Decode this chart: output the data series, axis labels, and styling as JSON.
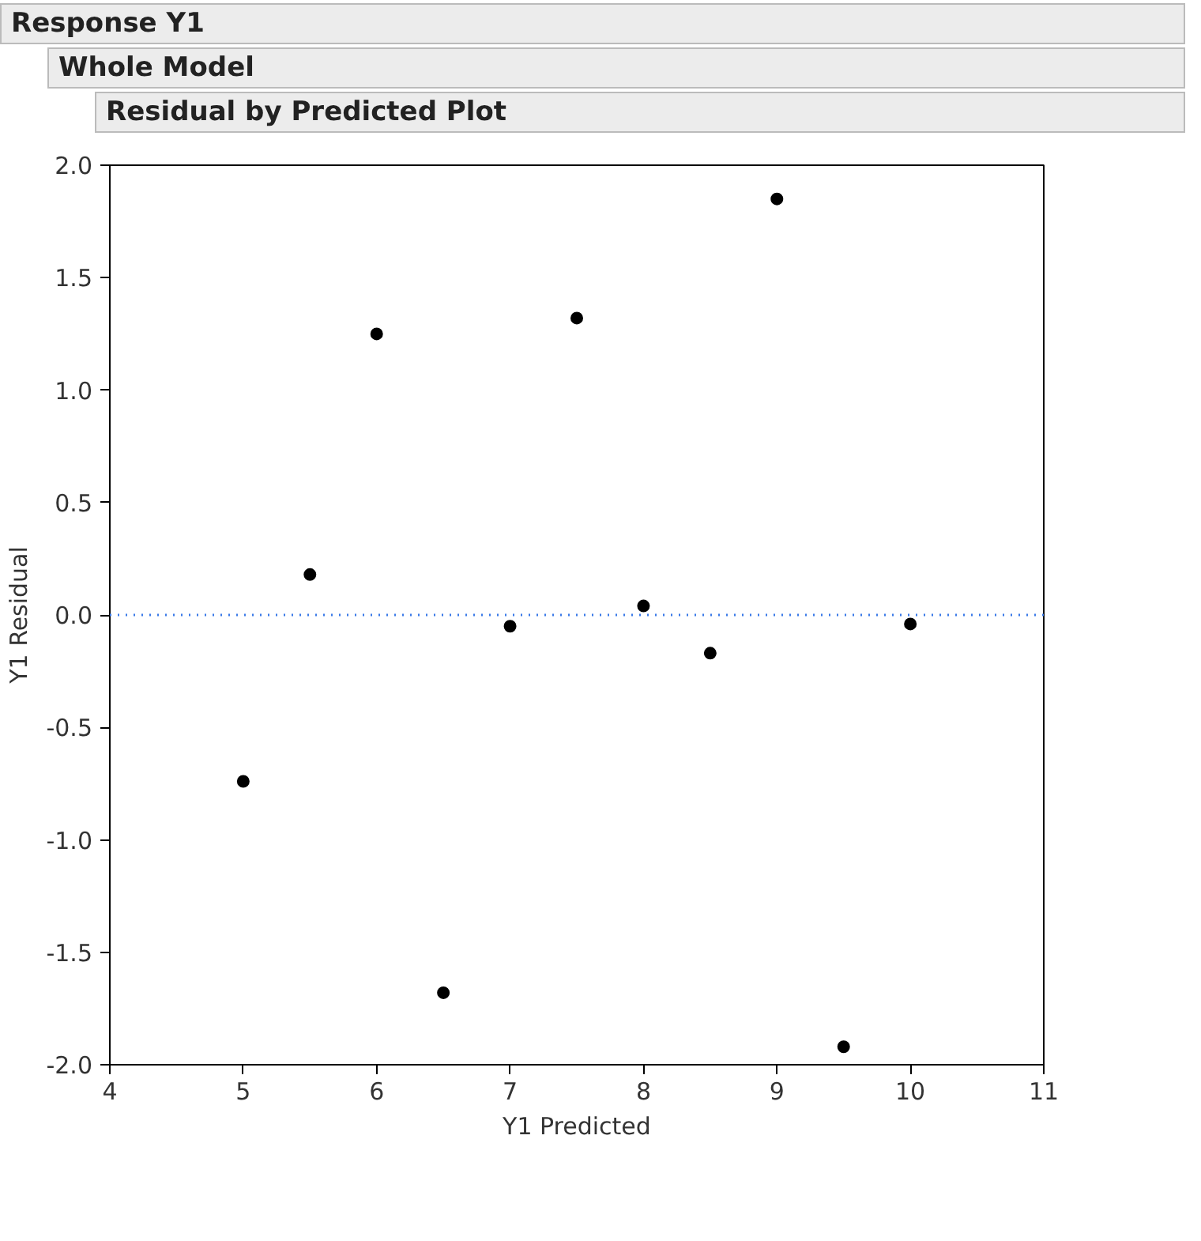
{
  "chart_data": {
    "type": "scatter",
    "title": "Response Y1",
    "subtitle": "Whole Model",
    "annotations": [
      "Residual by Predicted Plot"
    ],
    "xlabel": "Y1 Predicted",
    "ylabel": "Y1 Residual",
    "x": [
      5,
      5.5,
      6,
      6.5,
      7,
      7.5,
      8,
      8.5,
      9,
      9.5,
      10
    ],
    "series": [
      {
        "color": "#000000",
        "values": [
          -0.74,
          0.18,
          1.25,
          -1.68,
          -0.05,
          1.32,
          0.04,
          -0.17,
          1.85,
          -1.92,
          -0.04
        ]
      }
    ],
    "marker": "circle",
    "xlim": [
      4,
      11
    ],
    "xticks": [
      4,
      5,
      6,
      7,
      8,
      9,
      10,
      11
    ],
    "ylim": [
      -2,
      2
    ],
    "yticks": [
      {
        "value": -2,
        "label": "-2.0"
      },
      {
        "value": -1.5,
        "label": "-1.5"
      },
      {
        "value": -1,
        "label": "-1.0"
      },
      {
        "value": -0.5,
        "label": "-0.5"
      },
      {
        "value": 0,
        "label": "0.0"
      },
      {
        "value": 0.5,
        "label": "0.5"
      },
      {
        "value": 1,
        "label": "1.0"
      },
      {
        "value": 1.5,
        "label": "1.5"
      },
      {
        "value": 2,
        "label": "2.0"
      }
    ],
    "ref_lines": [
      {
        "axis": "y",
        "value": 0,
        "color": "#3b7be8",
        "line_style": "dotted"
      }
    ],
    "grid": false
  }
}
